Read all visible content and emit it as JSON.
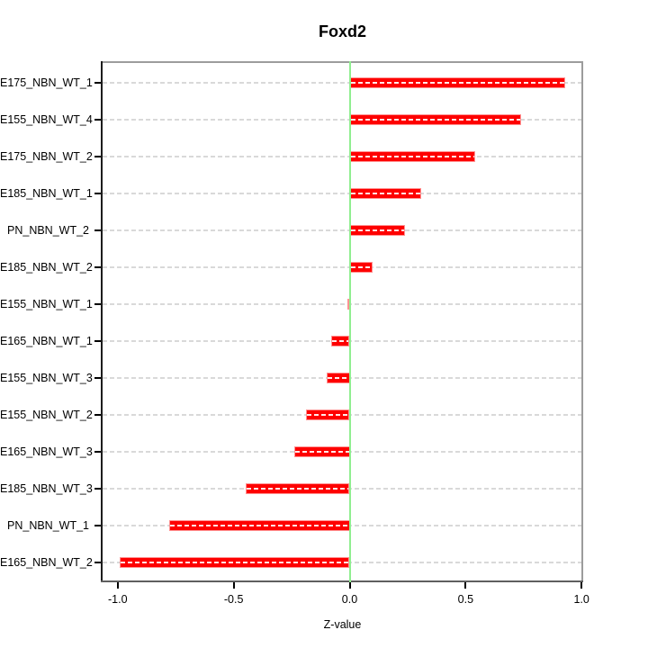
{
  "chart_data": {
    "type": "bar",
    "orientation": "horizontal",
    "title": "Foxd2",
    "xlabel": "Z-value",
    "ylabel": "",
    "legend": "none",
    "grid": "dashed horizontal line per category",
    "categories": [
      "E175_NBN_WT_1",
      "E155_NBN_WT_4",
      "E175_NBN_WT_2",
      "E185_NBN_WT_1",
      "PN_NBN_WT_2",
      "E185_NBN_WT_2",
      "E155_NBN_WT_1",
      "E165_NBN_WT_1",
      "E155_NBN_WT_3",
      "E155_NBN_WT_2",
      "E165_NBN_WT_3",
      "E185_NBN_WT_3",
      "PN_NBN_WT_1",
      "E165_NBN_WT_2"
    ],
    "values": [
      0.93,
      0.74,
      0.54,
      0.31,
      0.24,
      0.1,
      -0.01,
      -0.08,
      -0.1,
      -0.19,
      -0.24,
      -0.45,
      -0.78,
      -0.99
    ],
    "x_ticks": [
      -1.0,
      -0.5,
      0.0,
      0.5,
      1.0
    ],
    "x_tick_labels": [
      "-1.0",
      "-0.5",
      "0.0",
      "0.5",
      "1.0"
    ],
    "xlim": [
      -1.073,
      1.007
    ],
    "zero_line_x": 0.0,
    "colors": {
      "bar": "#fe0000",
      "bar_edge": "#ff9292",
      "bar_center_dash": "#ffffff",
      "zero_line": "#90ee90",
      "grid_line": "#d9d9d9",
      "box_border": "#9c9c9c",
      "axis_text": "#000000"
    }
  }
}
